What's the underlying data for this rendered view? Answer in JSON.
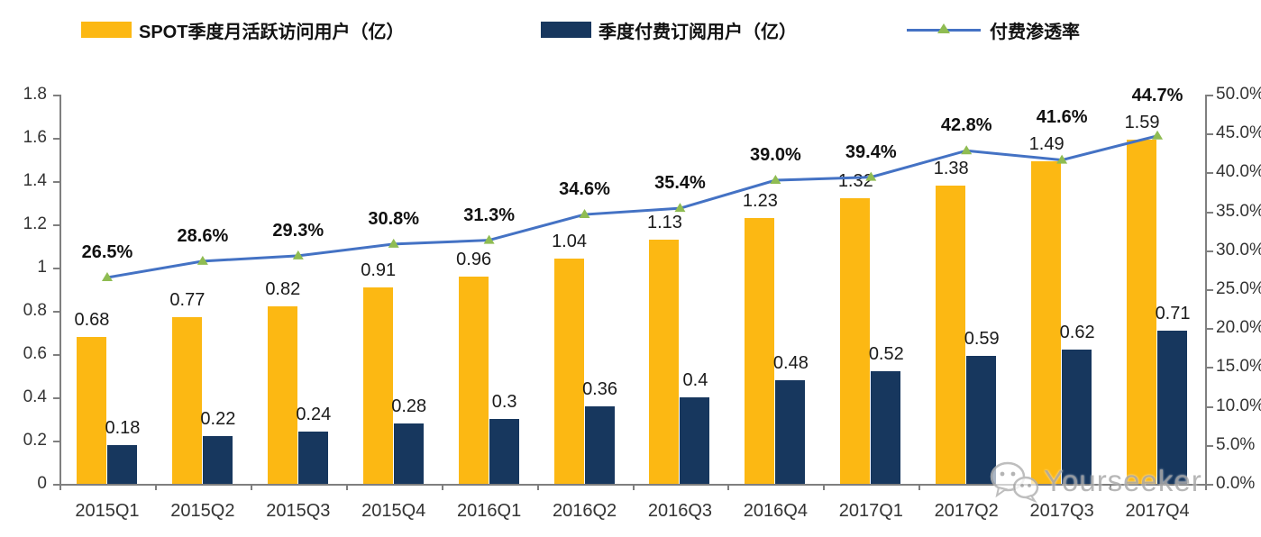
{
  "legend": {
    "items": [
      {
        "label": "SPOT季度月活跃访问用户（亿）"
      },
      {
        "label": "季度付费订阅用户（亿）"
      },
      {
        "label": "付费渗透率"
      }
    ]
  },
  "watermark": {
    "text": "Yourseeker",
    "icon": "wechat-icon"
  },
  "colors": {
    "mau_bar": "#FCB813",
    "subs_bar": "#17375E",
    "penetration_line": "#4472C4",
    "penetration_marker": "#8FBC52",
    "axis": "#7f7f7f"
  },
  "chart_data": {
    "type": "bar+line",
    "categories": [
      "2015Q1",
      "2015Q2",
      "2015Q3",
      "2015Q4",
      "2016Q1",
      "2016Q2",
      "2016Q3",
      "2016Q4",
      "2017Q1",
      "2017Q2",
      "2017Q3",
      "2017Q4"
    ],
    "series": [
      {
        "name": "SPOT季度月活跃访问用户（亿）",
        "type": "bar",
        "axis": "left",
        "values": [
          0.68,
          0.77,
          0.82,
          0.91,
          0.96,
          1.04,
          1.13,
          1.23,
          1.32,
          1.38,
          1.49,
          1.59
        ],
        "labels": [
          "0.68",
          "0.77",
          "0.82",
          "0.91",
          "0.96",
          "1.04",
          "1.13",
          "1.23",
          "1.32",
          "1.38",
          "1.49",
          "1.59"
        ]
      },
      {
        "name": "季度付费订阅用户（亿）",
        "type": "bar",
        "axis": "left",
        "values": [
          0.18,
          0.22,
          0.24,
          0.28,
          0.3,
          0.36,
          0.4,
          0.48,
          0.52,
          0.59,
          0.62,
          0.71
        ],
        "labels": [
          "0.18",
          "0.22",
          "0.24",
          "0.28",
          "0.3",
          "0.36",
          "0.4",
          "0.48",
          "0.52",
          "0.59",
          "0.62",
          "0.71"
        ]
      },
      {
        "name": "付费渗透率",
        "type": "line",
        "axis": "right",
        "values": [
          26.5,
          28.6,
          29.3,
          30.8,
          31.3,
          34.6,
          35.4,
          39.0,
          39.4,
          42.8,
          41.6,
          44.7
        ],
        "labels": [
          "26.5%",
          "28.6%",
          "29.3%",
          "30.8%",
          "31.3%",
          "34.6%",
          "35.4%",
          "39.0%",
          "39.4%",
          "42.8%",
          "41.6%",
          "44.7%"
        ]
      }
    ],
    "left_axis": {
      "min": 0,
      "max": 1.8,
      "tick_labels": [
        "0",
        "0.2",
        "0.4",
        "0.6",
        "0.8",
        "1",
        "1.2",
        "1.4",
        "1.6",
        "1.8"
      ]
    },
    "right_axis": {
      "min": 0,
      "max": 50,
      "tick_labels": [
        "0.0%",
        "5.0%",
        "10.0%",
        "15.0%",
        "20.0%",
        "25.0%",
        "30.0%",
        "35.0%",
        "40.0%",
        "45.0%",
        "50.0%"
      ]
    },
    "grid": false,
    "legend_position": "top"
  }
}
